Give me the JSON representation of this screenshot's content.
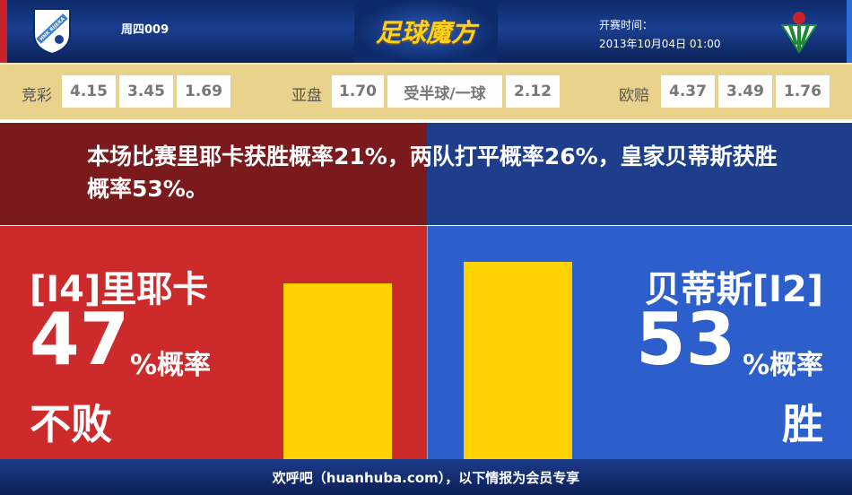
{
  "header": {
    "match_no": "周四009",
    "brand": "足球魔方",
    "time_label": "开赛时间：",
    "time_value": "2013年10月04日 01:00",
    "home_logo_text": "HNK RIJEKA",
    "away_logo": "real-betis-crest"
  },
  "odds": {
    "jingcai": {
      "label": "竞彩",
      "values": [
        "4.15",
        "3.45",
        "1.69"
      ]
    },
    "yapan": {
      "label": "亚盘",
      "home": "1.70",
      "line": "受半球/一球",
      "away": "2.12"
    },
    "oupei": {
      "label": "欧赔",
      "values": [
        "4.37",
        "3.49",
        "1.76"
      ]
    }
  },
  "banner": {
    "text": "本场比赛里耶卡获胜概率21%，两队打平概率26%，皇家贝蒂斯获胜概率53%。"
  },
  "home": {
    "name": "[I4]里耶卡",
    "pct": "47",
    "pct_suffix": "%概率",
    "outcome": "不败",
    "value": 47,
    "color": "#cc2a2b"
  },
  "away": {
    "name": "贝蒂斯[I2]",
    "pct": "53",
    "pct_suffix": "%概率",
    "outcome": "胜",
    "value": 53,
    "color": "#2c5fcb"
  },
  "bar_color": "#ffd200",
  "footer": {
    "text": "欢呼吧（huanhuba.com），以下情报为会员专享"
  }
}
